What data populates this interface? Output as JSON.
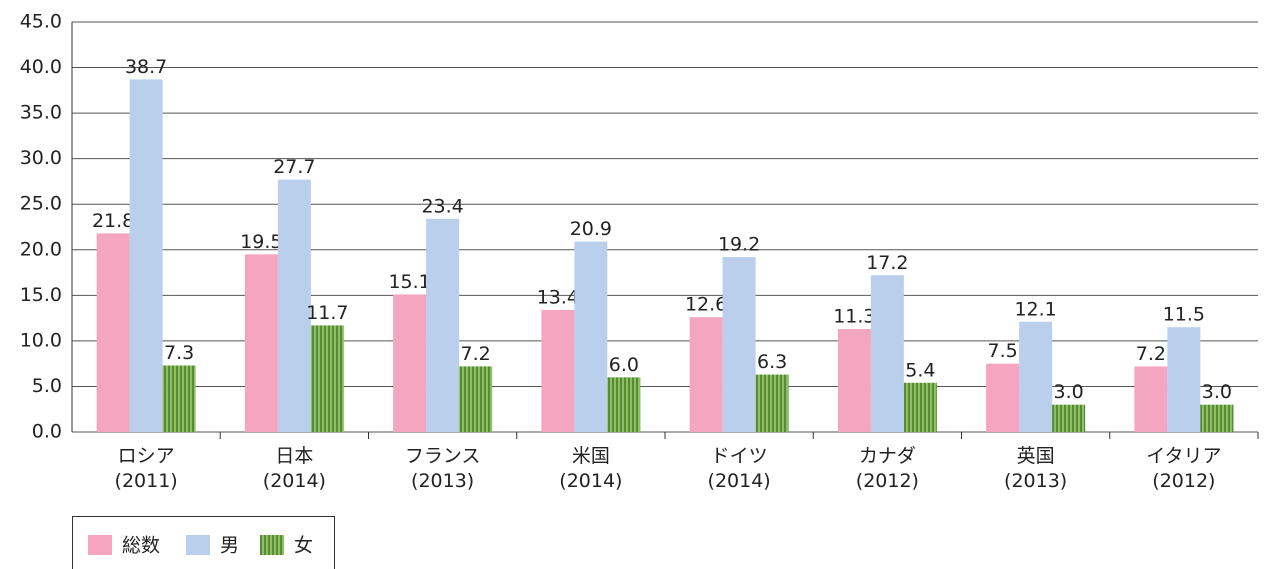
{
  "chart_data": {
    "type": "bar",
    "categories": [
      "ロシア\n(2011)",
      "日本\n(2014)",
      "フランス\n(2013)",
      "米国\n(2014)",
      "ドイツ\n(2014)",
      "カナダ\n(2012)",
      "英国\n(2013)",
      "イタリア\n(2012)"
    ],
    "series": [
      {
        "name": "総数",
        "color": "#f4a6c0",
        "values": [
          21.8,
          19.5,
          15.1,
          13.4,
          12.6,
          11.3,
          7.5,
          7.2
        ],
        "value_labels": [
          "21.8",
          "19.5",
          "15.1",
          "13.4",
          "12.6",
          "11.3",
          "7.5",
          "7.2"
        ]
      },
      {
        "name": "男",
        "color": "#b9cfec",
        "values": [
          38.7,
          27.7,
          23.4,
          20.9,
          19.2,
          17.2,
          12.1,
          11.5
        ],
        "value_labels": [
          "38.7",
          "27.7",
          "23.4",
          "20.9",
          "19.2",
          "17.2",
          "12.1",
          "11.5"
        ]
      },
      {
        "name": "女",
        "color": "#8cc063",
        "pattern": "vertical-stripes",
        "values": [
          7.3,
          11.7,
          7.2,
          6.0,
          6.3,
          5.4,
          3.0,
          3.0
        ],
        "value_labels": [
          "7.3",
          "11.7",
          "7.2",
          "6.0",
          "6.3",
          "5.4",
          "3.0",
          "3.0"
        ]
      }
    ],
    "ylim": [
      0,
      45
    ],
    "yticks": [
      {
        "value": 0,
        "label": "0.0"
      },
      {
        "value": 5,
        "label": "5.0"
      },
      {
        "value": 10,
        "label": "10.0"
      },
      {
        "value": 15,
        "label": "15.0"
      },
      {
        "value": 20,
        "label": "20.0"
      },
      {
        "value": 25,
        "label": "25.0"
      },
      {
        "value": 30,
        "label": "30.0"
      },
      {
        "value": 35,
        "label": "35.0"
      },
      {
        "value": 40,
        "label": "40.0"
      },
      {
        "value": 45,
        "label": "45.0"
      }
    ],
    "grid": true,
    "legend": "bottom-left"
  }
}
